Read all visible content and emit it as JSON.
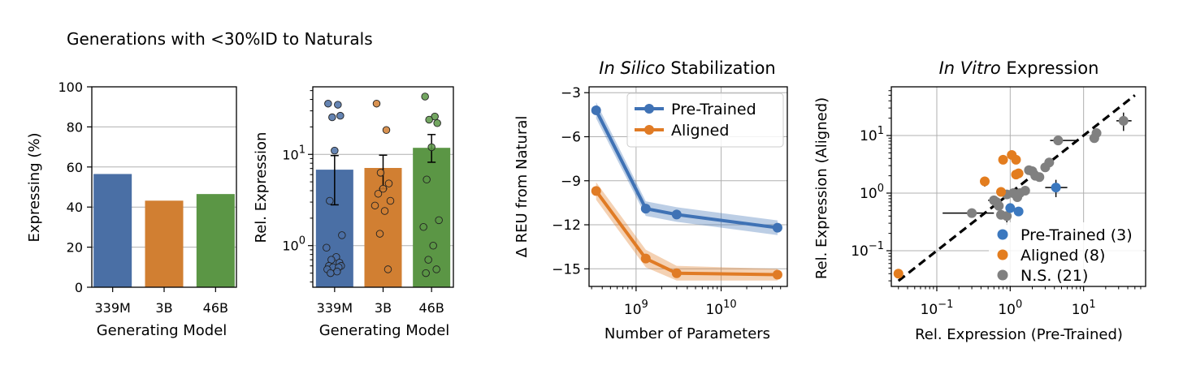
{
  "suptitle": "Generations with <30%ID to Naturals",
  "colors": {
    "blue": "#4a6fa5",
    "orange": "#d17f32",
    "green": "#5b9645",
    "gray": "#7f7f7f",
    "blue_line": "#3f72b5",
    "orange_line": "#e07b25",
    "point_blue": "#3b78bf",
    "point_orange": "#e37d1f",
    "point_gray": "#808080"
  },
  "chart_data": [
    {
      "type": "bar",
      "categories": [
        "339M",
        "3B",
        "46B"
      ],
      "values": [
        56.5,
        43.2,
        46.5
      ],
      "xlabel": "Generating Model",
      "ylabel": "Expressing (%)",
      "ylim": [
        0,
        100
      ],
      "yticks": [
        "0",
        "20",
        "40",
        "60",
        "80",
        "100"
      ],
      "grid": "horizontal"
    },
    {
      "type": "bar",
      "scale": "log",
      "categories": [
        "339M",
        "3B",
        "46B"
      ],
      "values": [
        6.8,
        7.1,
        11.8
      ],
      "errors": [
        [
          2.8,
          9.7
        ],
        [
          4.2,
          9.8
        ],
        [
          8.2,
          16.5
        ]
      ],
      "points": [
        [
          36,
          35,
          25.5,
          26.5,
          11,
          3.1,
          1.3,
          0.95,
          0.75,
          0.7,
          0.65,
          0.6,
          0.6,
          0.58,
          0.58,
          0.55,
          0.52,
          0.5
        ],
        [
          36,
          18.5,
          6.3,
          4.8,
          4.2,
          3.7,
          3.1,
          2.75,
          2.4,
          1.35,
          0.55
        ],
        [
          43,
          26,
          24,
          22,
          12,
          5.3,
          1.9,
          1.6,
          1.0,
          0.7,
          0.55,
          0.5
        ]
      ],
      "xlabel": "Generating Model",
      "ylabel": "Rel. Expression",
      "ylim": [
        0.35,
        55
      ],
      "yticks": [
        "10^0",
        "10^1"
      ],
      "grid": "horizontal"
    },
    {
      "type": "line",
      "title_italic": "In Silico",
      "title_rest": " Stabilization",
      "xscale": "log",
      "x": [
        339000000.0,
        1300000000.0,
        3000000000.0,
        46000000000.0
      ],
      "series": [
        {
          "name": "Pre-Trained",
          "values": [
            -4.2,
            -10.9,
            -11.3,
            -12.2
          ],
          "band": [
            0.55,
            0.5,
            0.5,
            0.5
          ]
        },
        {
          "name": "Aligned",
          "values": [
            -9.7,
            -14.3,
            -15.3,
            -15.4
          ],
          "band": [
            0.6,
            0.6,
            0.5,
            0.4
          ]
        }
      ],
      "xlabel": "Number of Parameters",
      "ylabel": "Δ REU from Natural",
      "xlim": [
        280000000.0,
        60000000000.0
      ],
      "ylim": [
        -16.2,
        -2.6
      ],
      "yticks": [
        "−3",
        "−6",
        "−9",
        "−12",
        "−15"
      ],
      "xticks": [
        "10^9",
        "10^10"
      ],
      "legend": "top-right",
      "grid": "both"
    },
    {
      "type": "scatter",
      "title_italic": "In Vitro",
      "title_rest": " Expression",
      "xscale": "log",
      "yscale": "log",
      "xlim": [
        0.024,
        70
      ],
      "ylim": [
        0.024,
        70
      ],
      "xticks": [
        "10^-1",
        "10^0",
        "10^1"
      ],
      "yticks": [
        "10^-1",
        "10^0",
        "10^1"
      ],
      "xlabel": "Rel. Expression (Pre-Trained)",
      "ylabel": "Rel. Expression (Aligned)",
      "legend": "bottom-right",
      "grid": "both",
      "series": [
        {
          "name": "Pre-Trained (3)",
          "color_key": "point_blue",
          "points": [
            [
              1.0,
              0.55
            ],
            [
              1.3,
              0.48
            ],
            [
              4.2,
              1.25
            ]
          ],
          "xerr": [
            [
              0.9,
              1.1
            ],
            [
              1.2,
              1.4
            ],
            [
              3.0,
              6.0
            ]
          ],
          "yerr": [
            [
              0.5,
              0.6
            ],
            [
              0.45,
              0.5
            ],
            [
              0.85,
              1.7
            ]
          ]
        },
        {
          "name": "Aligned (8)",
          "color_key": "point_orange",
          "points": [
            [
              0.03,
              0.04
            ],
            [
              0.45,
              1.6
            ],
            [
              0.75,
              1.05
            ],
            [
              0.8,
              3.8
            ],
            [
              1.05,
              4.6
            ],
            [
              1.2,
              3.8
            ],
            [
              1.2,
              2.1
            ],
            [
              1.3,
              2.2
            ]
          ],
          "xerr": [
            [
              0.03,
              0.03
            ],
            [
              0.45,
              0.45
            ],
            [
              0.72,
              0.78
            ],
            [
              0.76,
              0.84
            ],
            [
              1.0,
              1.1
            ],
            [
              1.15,
              1.25
            ],
            [
              1.15,
              1.25
            ],
            [
              1.25,
              1.5
            ]
          ],
          "yerr": [
            [
              0.035,
              0.045
            ],
            [
              1.3,
              1.9
            ],
            [
              0.9,
              1.2
            ],
            [
              3.3,
              4.3
            ],
            [
              3.9,
              5.4
            ],
            [
              3.2,
              4.4
            ],
            [
              1.8,
              2.4
            ],
            [
              1.9,
              2.5
            ]
          ]
        },
        {
          "name": "N.S. (21)",
          "color_key": "point_gray",
          "points": [
            [
              0.3,
              0.45
            ],
            [
              0.6,
              0.75
            ],
            [
              0.7,
              0.6
            ],
            [
              0.75,
              0.42
            ],
            [
              0.9,
              0.4
            ],
            [
              0.9,
              0.95
            ],
            [
              1.1,
              1.0
            ],
            [
              1.35,
              1.0
            ],
            [
              1.6,
              1.1
            ],
            [
              1.8,
              2.5
            ],
            [
              2.2,
              2.0
            ],
            [
              2.5,
              1.9
            ],
            [
              3.0,
              2.8
            ],
            [
              3.4,
              3.4
            ],
            [
              4.5,
              8.2
            ],
            [
              14,
              9.0
            ],
            [
              15,
              11
            ],
            [
              35,
              18
            ],
            [
              0.65,
              0.7
            ],
            [
              1.25,
              0.85
            ],
            [
              2.0,
              2.4
            ]
          ],
          "xerr": [
            [
              0.12,
              0.6
            ],
            [
              0.5,
              0.7
            ],
            [
              0.6,
              0.8
            ],
            [
              0.65,
              0.85
            ],
            [
              0.8,
              1.0
            ],
            [
              0.8,
              1.0
            ],
            [
              1.0,
              1.2
            ],
            [
              1.25,
              1.45
            ],
            [
              1.5,
              1.7
            ],
            [
              1.6,
              2.0
            ],
            [
              2.0,
              2.4
            ],
            [
              2.2,
              2.8
            ],
            [
              2.6,
              3.4
            ],
            [
              3.0,
              3.8
            ],
            [
              3.5,
              8.0
            ],
            [
              12,
              16
            ],
            [
              13,
              17
            ],
            [
              28,
              45
            ],
            [
              0.6,
              0.7
            ],
            [
              1.15,
              1.35
            ],
            [
              1.8,
              2.2
            ]
          ],
          "yerr": [
            [
              0.4,
              0.5
            ],
            [
              0.7,
              0.8
            ],
            [
              0.55,
              0.65
            ],
            [
              0.35,
              0.5
            ],
            [
              0.28,
              0.48
            ],
            [
              0.85,
              1.05
            ],
            [
              0.9,
              1.1
            ],
            [
              0.9,
              1.1
            ],
            [
              1.0,
              1.2
            ],
            [
              2.2,
              2.8
            ],
            [
              1.8,
              2.2
            ],
            [
              1.7,
              2.1
            ],
            [
              2.5,
              3.1
            ],
            [
              2.8,
              4.0
            ],
            [
              7.4,
              9.0
            ],
            [
              7.8,
              10.2
            ],
            [
              9.5,
              12.5
            ],
            [
              12,
              25
            ],
            [
              0.65,
              0.75
            ],
            [
              0.75,
              0.95
            ],
            [
              2.2,
              2.6
            ]
          ]
        }
      ]
    }
  ]
}
